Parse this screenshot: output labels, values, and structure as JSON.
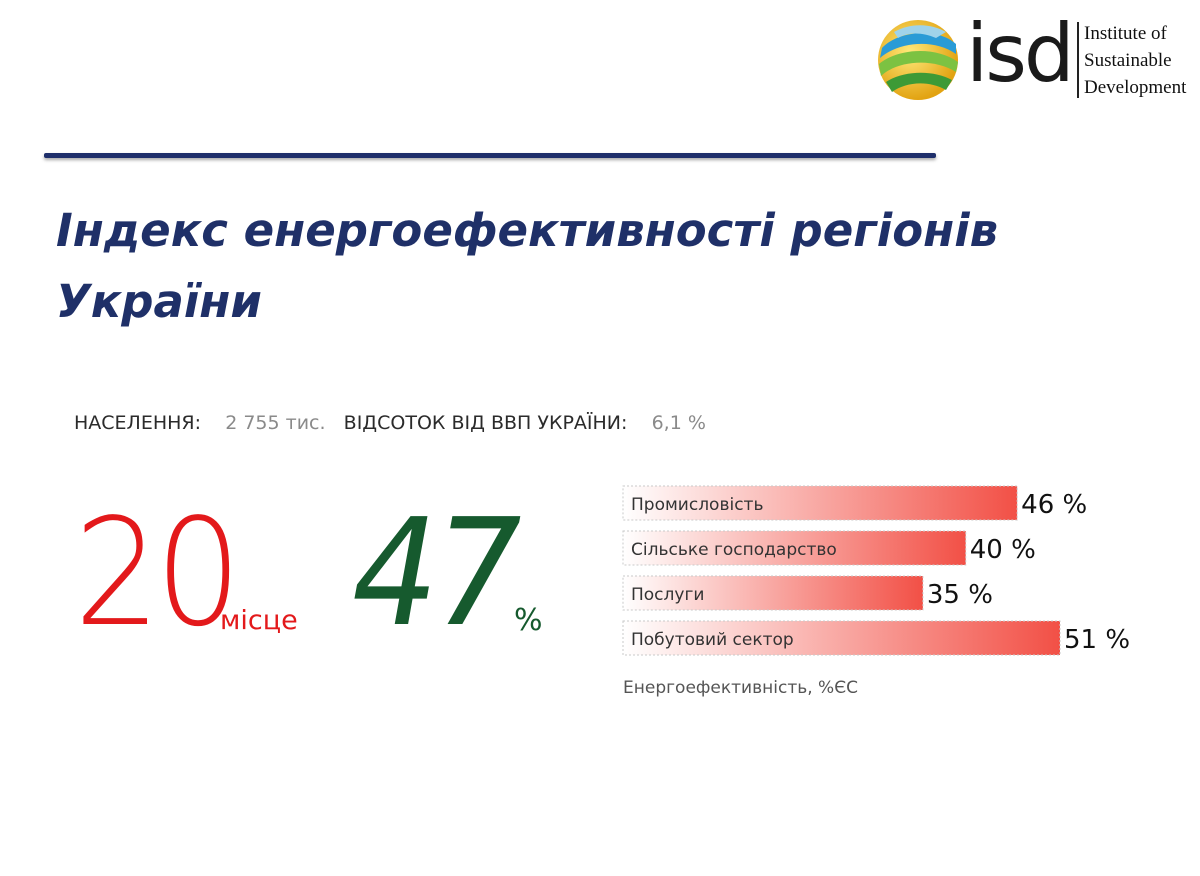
{
  "logo": {
    "acronym": "isd",
    "line1": "Institute of",
    "line2": "Sustainable",
    "line3": "Development"
  },
  "title": "Індекс енергоефективності регіонів України",
  "stats": {
    "population_label": "НАСЕЛЕННЯ:",
    "population_value": "2 755 тис.",
    "gdp_label": "ВІДСОТОК ВІД ВВП УКРАЇНИ:",
    "gdp_value": "6,1 %"
  },
  "rank": {
    "value": "20",
    "unit": "місце",
    "color": "#e3191b"
  },
  "efficiency": {
    "value": "47",
    "unit": "%",
    "color": "#165a2e"
  },
  "colors": {
    "title": "#1f3068",
    "bar_start": "#ffffff",
    "bar_end": "#f25046"
  },
  "chart_data": {
    "type": "bar",
    "orientation": "horizontal",
    "categories": [
      "Промисловість",
      "Сільське господарство",
      "Послуги",
      "Побутовий сектор"
    ],
    "values": [
      46,
      40,
      35,
      51
    ],
    "value_labels": [
      "46 %",
      "40 %",
      "35 %",
      "51 %"
    ],
    "xlabel": "Енергоефективність, %ЄС",
    "xlim": [
      0,
      51
    ]
  }
}
